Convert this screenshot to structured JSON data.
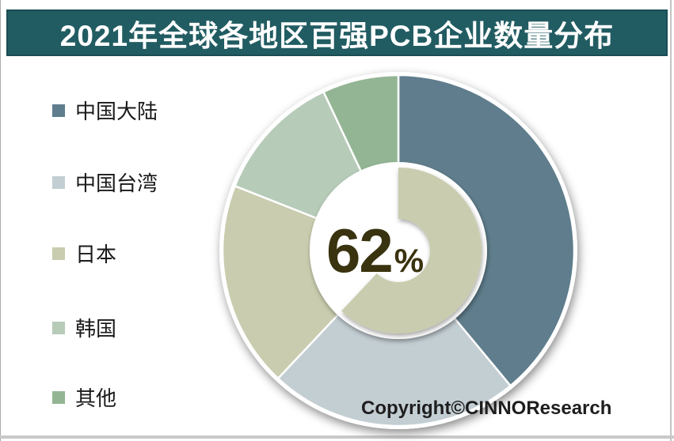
{
  "page": {
    "title": "2021年全球各地区百强PCB企业数量分布",
    "copyright": "Copyright©CINNOResearch"
  },
  "colors": {
    "header_bg": "#215c62",
    "header_border": "#1a4d53",
    "title_text": "#ffffff",
    "center_text": "#3a330f",
    "copyright_text": "#1e1e1e",
    "page_bg": "#ffffff",
    "frame_gray": "#c9c9c9"
  },
  "chart_data": {
    "type": "pie",
    "variant": "donut",
    "title": "2021年全球各地区百强PCB企业数量分布",
    "categories": [
      "中国大陆",
      "中国台湾",
      "日本",
      "韩国",
      "其他"
    ],
    "values": [
      39,
      23,
      19,
      12,
      7
    ],
    "colors": [
      "#5f7d8c",
      "#c3ced3",
      "#c9ccae",
      "#b6cbb8",
      "#93b594"
    ],
    "start_angle_deg": 0,
    "direction": "clockwise",
    "legend_position": "left",
    "center_label": {
      "value": "62",
      "suffix": "%"
    },
    "center_arc_percent": 62,
    "center_arc_color": "#c9ccae"
  }
}
